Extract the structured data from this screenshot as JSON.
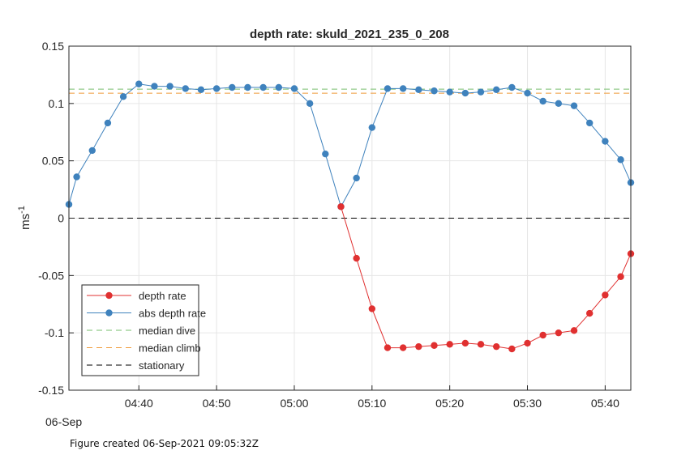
{
  "chart_data": {
    "type": "line",
    "title": "depth rate: skuld_2021_235_0_208",
    "ylabel": "ms",
    "ylabel_exponent": "-1",
    "date_label": "06-Sep",
    "x_ticks": [
      "04:40",
      "04:50",
      "05:00",
      "05:10",
      "05:20",
      "05:30",
      "05:40"
    ],
    "y_ticks": [
      "0.15",
      "0.1",
      "0.05",
      "0",
      "-0.05",
      "-0.1",
      "-0.15"
    ],
    "ylim": [
      -0.15,
      0.15
    ],
    "x_range_minutes": [
      "04:31",
      "05:43.3"
    ],
    "grid": true,
    "legend_position": "bottom-left",
    "x": [
      "04:31",
      "04:32",
      "04:34",
      "04:36",
      "04:38",
      "04:40",
      "04:42",
      "04:44",
      "04:46",
      "04:48",
      "04:50",
      "04:52",
      "04:54",
      "04:56",
      "04:58",
      "05:00",
      "05:02",
      "05:04",
      "05:06",
      "05:08",
      "05:10",
      "05:12",
      "05:14",
      "05:16",
      "05:18",
      "05:20",
      "05:22",
      "05:24",
      "05:26",
      "05:28",
      "05:30",
      "05:32",
      "05:34",
      "05:36",
      "05:38",
      "05:40",
      "05:42",
      "05:43.3"
    ],
    "series": [
      {
        "name": "depth rate",
        "color": "#e03030",
        "marker": "circle",
        "values": [
          null,
          null,
          null,
          null,
          null,
          null,
          null,
          null,
          null,
          null,
          null,
          null,
          null,
          null,
          null,
          null,
          null,
          null,
          0.01,
          -0.035,
          -0.079,
          -0.113,
          -0.113,
          -0.112,
          -0.111,
          -0.11,
          -0.109,
          -0.11,
          -0.112,
          -0.114,
          -0.109,
          -0.102,
          -0.1,
          -0.098,
          -0.083,
          -0.067,
          -0.051,
          -0.031
        ]
      },
      {
        "name": "abs depth rate",
        "color": "#3f82bd",
        "marker": "circle",
        "values": [
          0.012,
          0.036,
          0.059,
          0.083,
          0.106,
          0.117,
          0.115,
          0.115,
          0.113,
          0.112,
          0.113,
          0.114,
          0.114,
          0.114,
          0.114,
          0.113,
          0.1,
          0.056,
          0.01,
          0.035,
          0.079,
          0.113,
          0.113,
          0.112,
          0.111,
          0.11,
          0.109,
          0.11,
          0.112,
          0.114,
          0.109,
          0.102,
          0.1,
          0.098,
          0.083,
          0.067,
          0.051,
          0.031
        ]
      },
      {
        "name": "median dive",
        "color": "#77bf6d",
        "style": "dashed",
        "value": 0.1125
      },
      {
        "name": "median climb",
        "color": "#ef9a3a",
        "style": "dashed",
        "value": 0.109
      },
      {
        "name": "stationary",
        "color": "#000000",
        "style": "dashed",
        "value": 0
      }
    ]
  },
  "footer": "Figure created 06-Sep-2021 09:05:32Z"
}
